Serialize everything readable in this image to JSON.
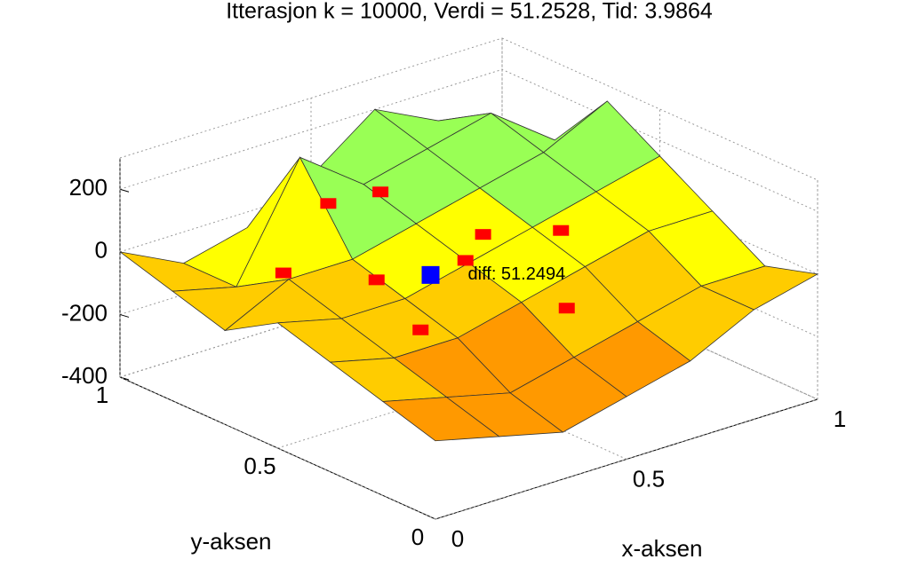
{
  "chart_data": {
    "type": "surface",
    "title": "Itterasjon k = 10000,    Verdi = 51.2528,    Tid: 3.9864",
    "xlabel": "x-aksen",
    "ylabel": "y-aksen",
    "x": [
      0,
      0.1667,
      0.3333,
      0.5,
      0.6667,
      0.8333,
      1
    ],
    "y": [
      0,
      0.1667,
      0.3333,
      0.5,
      0.6667,
      0.8333,
      1
    ],
    "z": [
      [
        -150,
        -200,
        -250,
        -200,
        -150,
        -50,
        0
      ],
      [
        -100,
        -150,
        -200,
        -150,
        -100,
        -50,
        -50
      ],
      [
        -50,
        -100,
        -100,
        -50,
        0,
        50,
        50
      ],
      [
        0,
        -50,
        -50,
        0,
        50,
        100,
        150
      ],
      [
        -100,
        0,
        0,
        50,
        100,
        150,
        250
      ],
      [
        -50,
        -100,
        250,
        100,
        150,
        200,
        50
      ],
      [
        0,
        -100,
        -50,
        50,
        200,
        100,
        0
      ]
    ],
    "colormap": [
      "#ff2a00",
      "#ff9900",
      "#ffcc00",
      "#ffff00",
      "#99ff55",
      "#4dffa0"
    ],
    "xlim": [
      0,
      1
    ],
    "ylim": [
      0,
      1
    ],
    "zlim": [
      -400,
      300
    ],
    "xticks": [
      0,
      0.5,
      1
    ],
    "yticks": [
      0,
      0.5,
      1
    ],
    "zticks": [
      -400,
      -200,
      0,
      200
    ],
    "grid": true,
    "points": {
      "color": "#ff0000",
      "x": [
        0.5,
        0.62,
        0.45,
        0.3,
        0.18,
        0.25,
        0.55,
        0.7,
        0.38
      ],
      "y": [
        0.78,
        0.6,
        0.45,
        0.55,
        0.7,
        0.35,
        0.25,
        0.45,
        0.8
      ],
      "z": [
        100,
        0,
        50,
        0,
        0,
        -50,
        -50,
        50,
        100
      ]
    },
    "highlight": {
      "color": "#0000ff",
      "x": 0.4,
      "y": 0.5,
      "z": 0,
      "label": "diff: 51.2494"
    }
  }
}
